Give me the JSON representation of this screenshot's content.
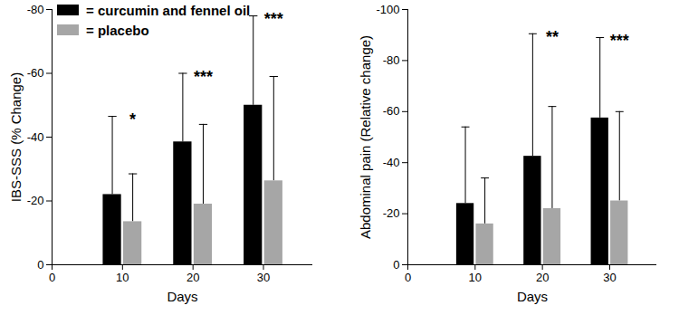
{
  "chart_data": [
    {
      "type": "bar",
      "x_label": "Days",
      "y_label": "IBS-SSS (% Change)",
      "x": [
        10,
        20,
        30
      ],
      "xlim": [
        0,
        37
      ],
      "xticks": [
        0,
        10,
        20,
        30
      ],
      "ylim": [
        0,
        -80
      ],
      "yticks": [
        0,
        -20,
        -40,
        -60,
        -80
      ],
      "legend": "upper left",
      "series": [
        {
          "name": "= curcumin and fennel oil",
          "color": "#000000",
          "values": [
            -22,
            -38.5,
            -50
          ],
          "errors": [
            24.5,
            21.5,
            28
          ]
        },
        {
          "name": "= placebo",
          "color": "#a6a6a6",
          "values": [
            -13.5,
            -19,
            -26.3
          ],
          "errors": [
            15,
            25,
            32.7
          ]
        }
      ],
      "annotations": [
        "*",
        "***",
        "***"
      ]
    },
    {
      "type": "bar",
      "x_label": "Days",
      "y_label": "Abdominal pain (Relative change)",
      "x": [
        10,
        20,
        30
      ],
      "xlim": [
        0,
        37
      ],
      "xticks": [
        0,
        10,
        20,
        30
      ],
      "ylim": [
        0,
        -100
      ],
      "yticks": [
        0,
        -20,
        -40,
        -60,
        -80,
        -100
      ],
      "series": [
        {
          "name": "= curcumin and fennel oil",
          "color": "#000000",
          "values": [
            -24,
            -42.5,
            -57.5
          ],
          "errors": [
            30,
            48,
            31.5
          ]
        },
        {
          "name": "= placebo",
          "color": "#a6a6a6",
          "values": [
            -16,
            -22,
            -25
          ],
          "errors": [
            18,
            40,
            35
          ]
        }
      ],
      "annotations": [
        null,
        "**",
        "***"
      ]
    }
  ]
}
